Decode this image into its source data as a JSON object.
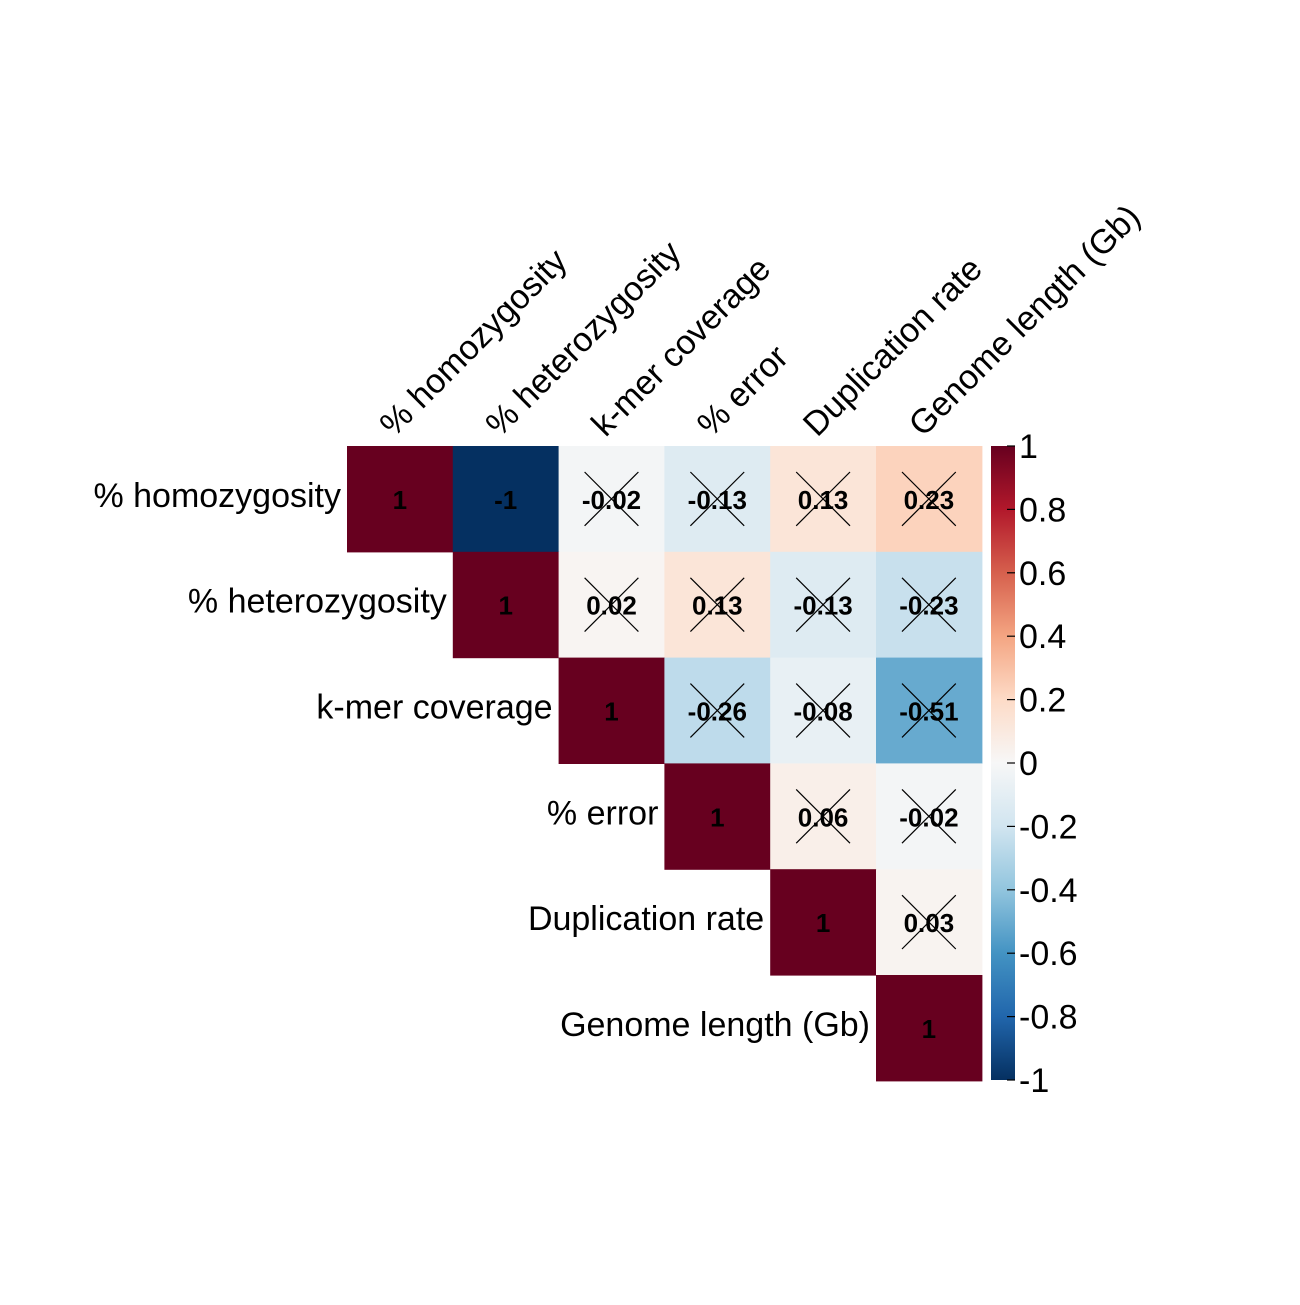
{
  "chart_data": {
    "type": "heatmap",
    "layout": "upper-triangle",
    "variables": [
      "% homozygosity",
      "% heterozygosity",
      "k-mer coverage",
      "% error",
      "Duplication rate",
      "Genome length (Gb)"
    ],
    "matrix": [
      [
        1,
        -1,
        -0.02,
        -0.13,
        0.13,
        0.23
      ],
      [
        null,
        1,
        0.02,
        0.13,
        -0.13,
        -0.23
      ],
      [
        null,
        null,
        1,
        -0.26,
        -0.08,
        -0.51
      ],
      [
        null,
        null,
        null,
        1,
        0.06,
        -0.02
      ],
      [
        null,
        null,
        null,
        null,
        1,
        0.03
      ],
      [
        null,
        null,
        null,
        null,
        null,
        1
      ]
    ],
    "labels": [
      [
        "1",
        "-1",
        "-0.02",
        "-0.13",
        "0.13",
        "0.23"
      ],
      [
        null,
        "1",
        "0.02",
        "0.13",
        "-0.13",
        "-0.23"
      ],
      [
        null,
        null,
        "1",
        "-0.26",
        "-0.08",
        "-0.51"
      ],
      [
        null,
        null,
        null,
        "1",
        "0.06",
        "-0.02"
      ],
      [
        null,
        null,
        null,
        null,
        "1",
        "0.03"
      ],
      [
        null,
        null,
        null,
        null,
        null,
        "1"
      ]
    ],
    "crossed": [
      [
        false,
        false,
        true,
        true,
        true,
        true
      ],
      [
        null,
        false,
        true,
        true,
        true,
        true
      ],
      [
        null,
        null,
        false,
        true,
        true,
        true
      ],
      [
        null,
        null,
        null,
        false,
        true,
        true
      ],
      [
        null,
        null,
        null,
        null,
        false,
        true
      ],
      [
        null,
        null,
        null,
        null,
        null,
        false
      ]
    ],
    "colorbar": {
      "range": [
        -1,
        1
      ],
      "ticks": [
        1,
        0.8,
        0.6,
        0.4,
        0.2,
        0,
        -0.2,
        -0.4,
        -0.6,
        -0.8,
        -1
      ],
      "tick_labels": [
        "1",
        "0.8",
        "0.6",
        "0.4",
        "0.2",
        "0",
        "-0.2",
        "-0.4",
        "-0.6",
        "-0.8",
        "-1"
      ],
      "placement": "right"
    },
    "palette": [
      "#053061",
      "#2166ac",
      "#4393c3",
      "#92c5de",
      "#d1e5f0",
      "#f7f7f7",
      "#fddbc7",
      "#f4a582",
      "#d6604d",
      "#b2182b",
      "#67001f"
    ]
  }
}
